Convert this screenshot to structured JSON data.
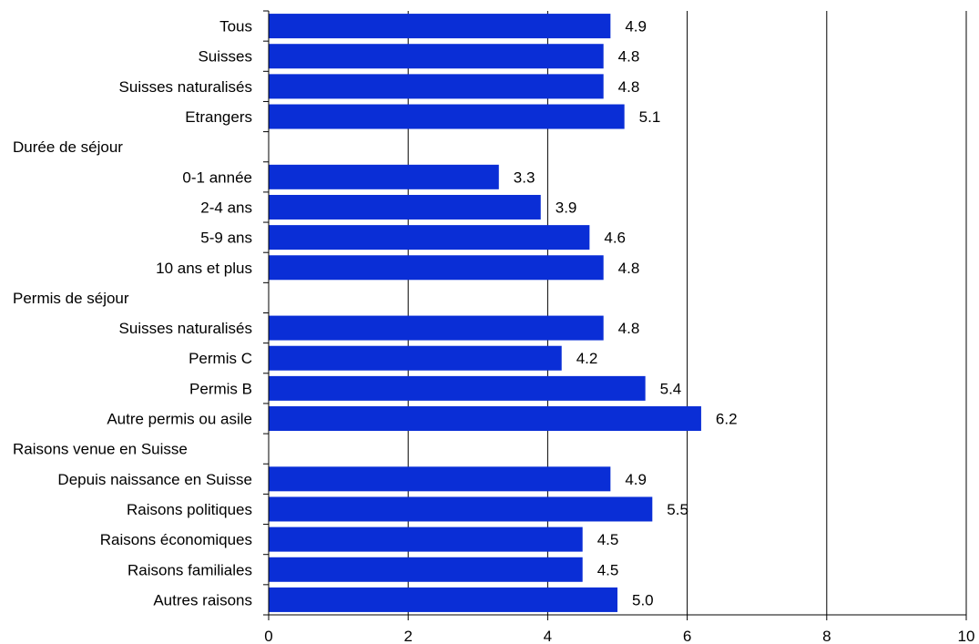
{
  "chart_data": {
    "type": "bar",
    "orientation": "horizontal",
    "title": "",
    "xlabel": "",
    "ylabel": "",
    "xlim": [
      0,
      10
    ],
    "x_ticks": [
      "0",
      "2",
      "4",
      "6",
      "8",
      "10"
    ],
    "grid": "vertical major gridlines",
    "legend": "none",
    "bar_color": "#0a2ed6",
    "rows": [
      {
        "label": "Tous",
        "value": 4.9,
        "value_label": "4.9",
        "kind": "bar"
      },
      {
        "label": "Suisses",
        "value": 4.8,
        "value_label": "4.8",
        "kind": "bar"
      },
      {
        "label": "Suisses naturalisés",
        "value": 4.8,
        "value_label": "4.8",
        "kind": "bar"
      },
      {
        "label": "Etrangers",
        "value": 5.1,
        "value_label": "5.1",
        "kind": "bar"
      },
      {
        "label": "Durée de séjour",
        "kind": "header"
      },
      {
        "label": "0-1 année",
        "value": 3.3,
        "value_label": "3.3",
        "kind": "bar"
      },
      {
        "label": "2-4 ans",
        "value": 3.9,
        "value_label": "3.9",
        "kind": "bar"
      },
      {
        "label": "5-9 ans",
        "value": 4.6,
        "value_label": "4.6",
        "kind": "bar"
      },
      {
        "label": "10 ans et plus",
        "value": 4.8,
        "value_label": "4.8",
        "kind": "bar"
      },
      {
        "label": "Permis de séjour",
        "kind": "header"
      },
      {
        "label": "Suisses naturalisés",
        "value": 4.8,
        "value_label": "4.8",
        "kind": "bar"
      },
      {
        "label": "Permis C",
        "value": 4.2,
        "value_label": "4.2",
        "kind": "bar"
      },
      {
        "label": "Permis B",
        "value": 5.4,
        "value_label": "5.4",
        "kind": "bar"
      },
      {
        "label": "Autre permis ou asile",
        "value": 6.2,
        "value_label": "6.2",
        "kind": "bar"
      },
      {
        "label": "Raisons venue en Suisse",
        "kind": "header"
      },
      {
        "label": "Depuis naissance en Suisse",
        "value": 4.9,
        "value_label": "4.9",
        "kind": "bar"
      },
      {
        "label": "Raisons politiques",
        "value": 5.5,
        "value_label": "5.5",
        "kind": "bar"
      },
      {
        "label": "Raisons économiques",
        "value": 4.5,
        "value_label": "4.5",
        "kind": "bar"
      },
      {
        "label": "Raisons familiales",
        "value": 4.5,
        "value_label": "4.5",
        "kind": "bar"
      },
      {
        "label": "Autres raisons",
        "value": 5.0,
        "value_label": "5.0",
        "kind": "bar"
      }
    ]
  }
}
